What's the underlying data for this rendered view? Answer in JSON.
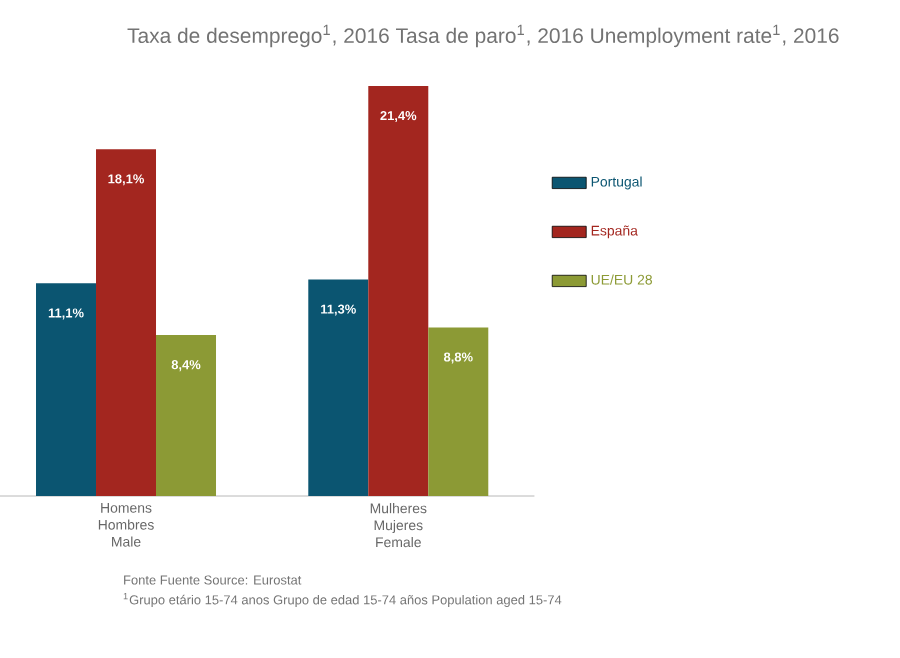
{
  "chart_data": {
    "type": "bar",
    "title": "Taxa de desemprego$^{1}$, 2016  Tasa de paro$^{1}$, 2016  Unemployment rate$^{1}$, 2016",
    "categories": [
      "Homens Hombres Male",
      "Mulheres Mujeres Female"
    ],
    "series": [
      {
        "name": "Portugal",
        "color": "#0b5571",
        "values": [
          11.1,
          11.3
        ],
        "value_labels": [
          "11,1%",
          "11,3%"
        ]
      },
      {
        "name": "España",
        "color": "#a3261f",
        "values": [
          18.1,
          21.4
        ],
        "value_labels": [
          "18,1%",
          "21,4%"
        ]
      },
      {
        "name": "UE/EU 28",
        "color": "#8c9a35",
        "values": [
          8.4,
          8.8
        ],
        "value_labels": [
          "8,4%",
          "8,8%"
        ]
      }
    ],
    "legend": "right",
    "annotations": [
      "Fonte  Fuente  Source: Eurostat",
      "$^{1}$Grupo etário 15-74 anos  Grupo de edad 15-74 años  Population aged 15-74"
    ]
  }
}
